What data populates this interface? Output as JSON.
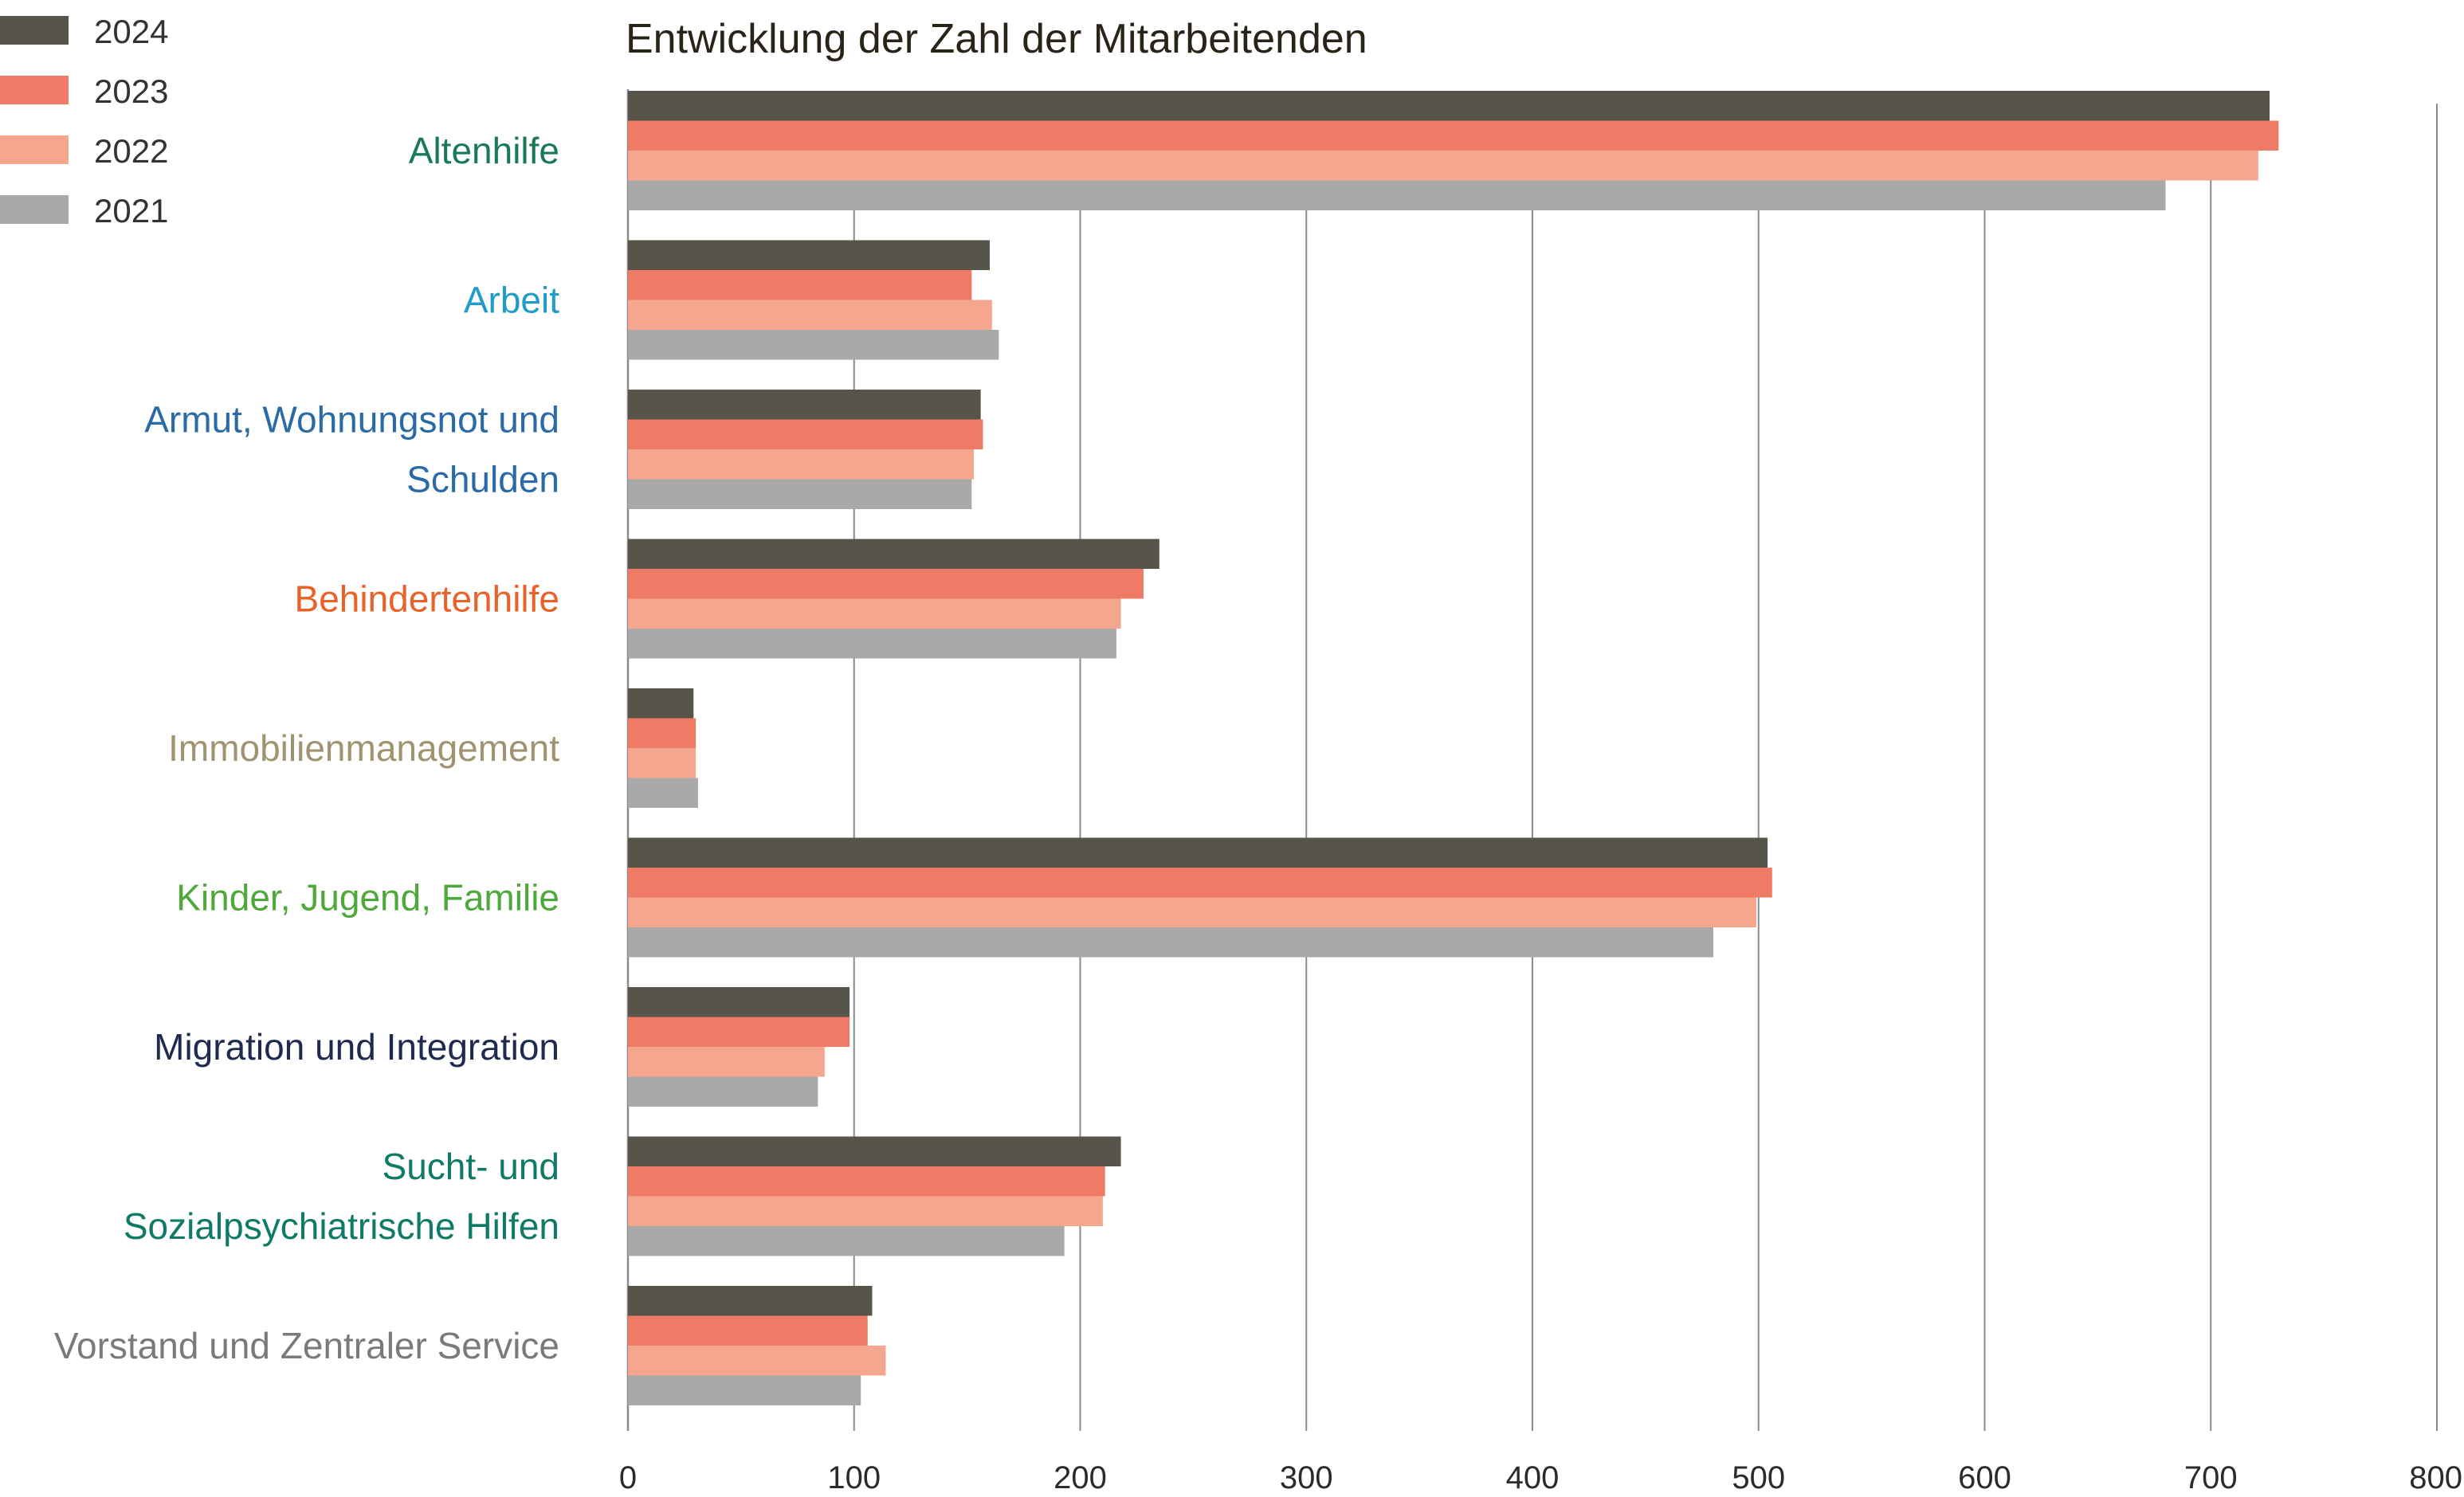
{
  "chart_data": {
    "type": "bar",
    "orientation": "horizontal",
    "title": "Entwicklung der Zahl der Mitarbeitenden",
    "xlabel": "",
    "ylabel": "",
    "xlim": [
      0,
      800
    ],
    "x_ticks": [
      0,
      100,
      200,
      300,
      400,
      500,
      600,
      700,
      800
    ],
    "grid": true,
    "legend_position": "top-left",
    "categories": [
      {
        "label": "Altenhilfe",
        "color": "#1a7a55"
      },
      {
        "label": "Arbeit",
        "color": "#1f9cc9"
      },
      {
        "label": "Armut, Wohnungsnot und Schulden",
        "lines": [
          "Armut, Wohnungsnot und",
          "Schulden"
        ],
        "color": "#2a6aa6"
      },
      {
        "label": "Behindertenhilfe",
        "color": "#e8622a"
      },
      {
        "label": "Immobilienmanagement",
        "color": "#a09470"
      },
      {
        "label": "Kinder, Jugend, Familie",
        "color": "#4ea83a"
      },
      {
        "label": "Migration und Integration",
        "color": "#1f2a4f"
      },
      {
        "label": "Sucht- und Sozialpsychiatrische Hilfen",
        "lines": [
          "Sucht- und",
          "Sozialpsychiatrische Hilfen"
        ],
        "color": "#0f7a66"
      },
      {
        "label": "Vorstand und Zentraler Service",
        "color": "#7a7a7a"
      }
    ],
    "series": [
      {
        "name": "2024",
        "color": "#57544a",
        "values": [
          726,
          160,
          156,
          235,
          29,
          504,
          98,
          218,
          108
        ]
      },
      {
        "name": "2023",
        "color": "#ef7a66",
        "values": [
          730,
          152,
          157,
          228,
          30,
          506,
          98,
          211,
          106
        ]
      },
      {
        "name": "2022",
        "color": "#f5a68e",
        "values": [
          721,
          161,
          153,
          218,
          30,
          499,
          87,
          210,
          114
        ]
      },
      {
        "name": "2021",
        "color": "#a9a9a9",
        "values": [
          680,
          164,
          152,
          216,
          31,
          480,
          84,
          193,
          103
        ]
      }
    ]
  },
  "colors": {
    "gridline": "#8c8c8c",
    "axis_text": "#2b2b2b",
    "title_text": "#2a2418"
  }
}
